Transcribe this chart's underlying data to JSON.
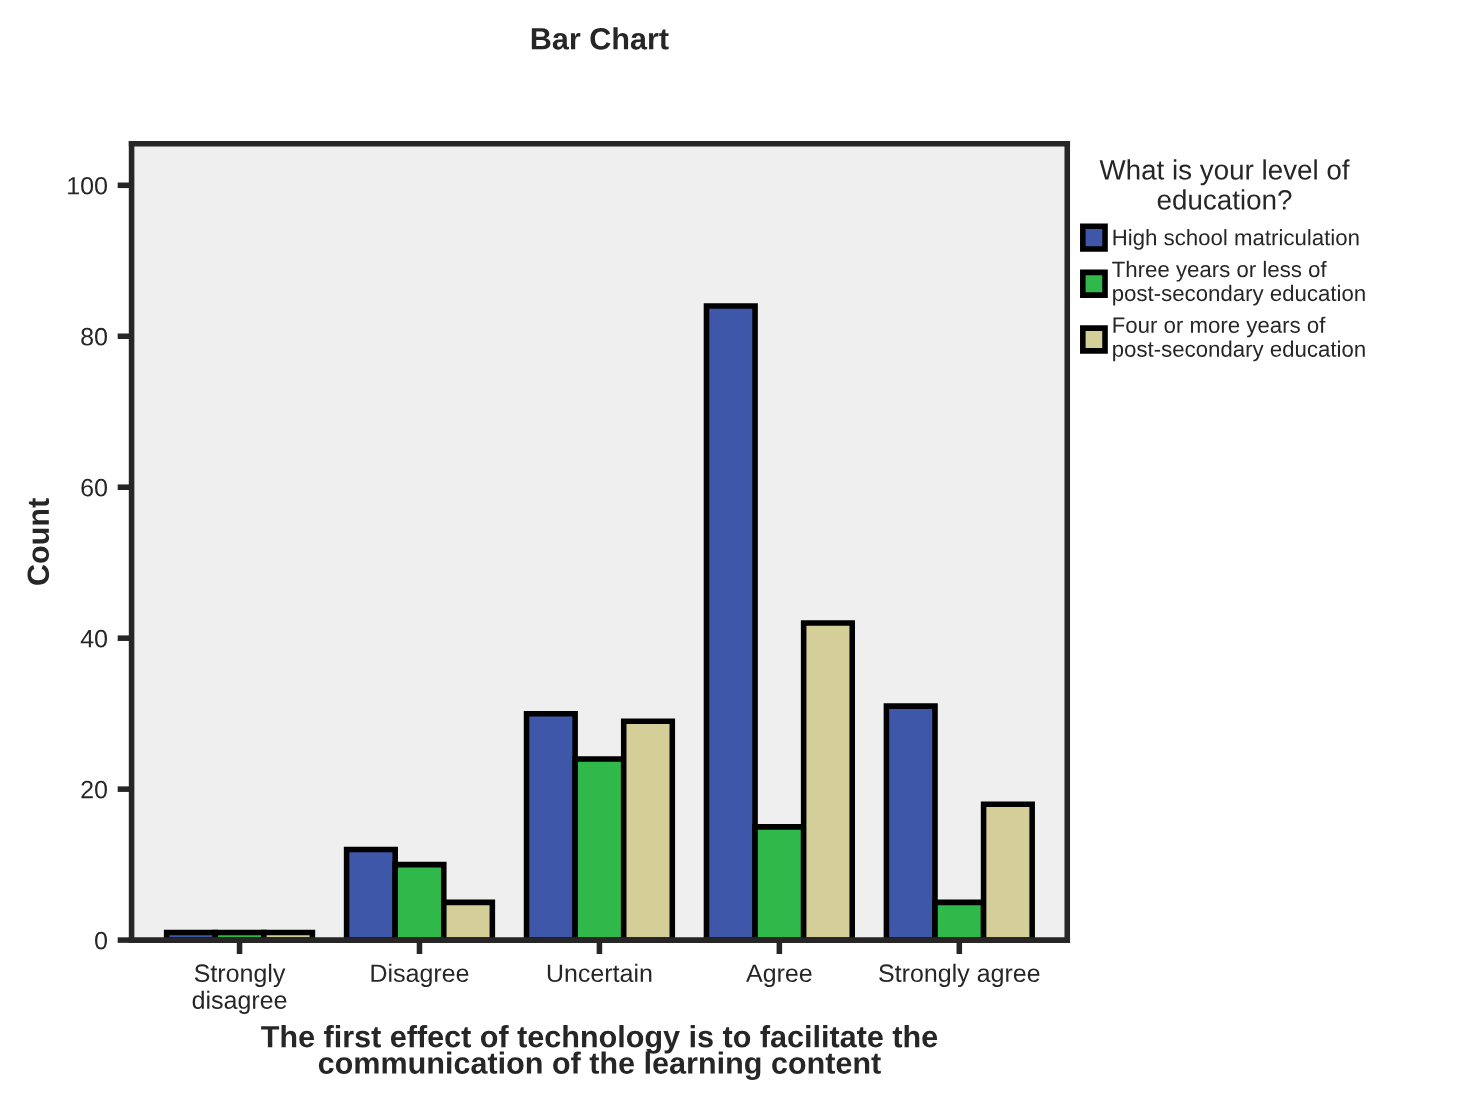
{
  "chart_data": {
    "type": "bar",
    "title": "Bar Chart",
    "xlabel": "The first effect of technology is to facilitate the\ncommunication of the learning content",
    "ylabel": "Count",
    "legend_title": "What is your level of\neducation?",
    "categories": [
      "Strongly\ndisagree",
      "Disagree",
      "Uncertain",
      "Agree",
      "Strongly agree"
    ],
    "series": [
      {
        "name": "High school matriculation",
        "color": "#3f57a8",
        "values": [
          1,
          12,
          30,
          84,
          31
        ]
      },
      {
        "name": "Three years or less of\npost-secondary education",
        "color": "#30b84a",
        "values": [
          1,
          10,
          24,
          15,
          5
        ]
      },
      {
        "name": "Four or more years of\npost-secondary education",
        "color": "#d4cf98",
        "values": [
          1,
          5,
          29,
          42,
          18
        ]
      }
    ],
    "ylim": [
      0,
      105.5
    ],
    "yticks": [
      0,
      20,
      40,
      60,
      80,
      100
    ],
    "grid": false,
    "legend": "right"
  }
}
